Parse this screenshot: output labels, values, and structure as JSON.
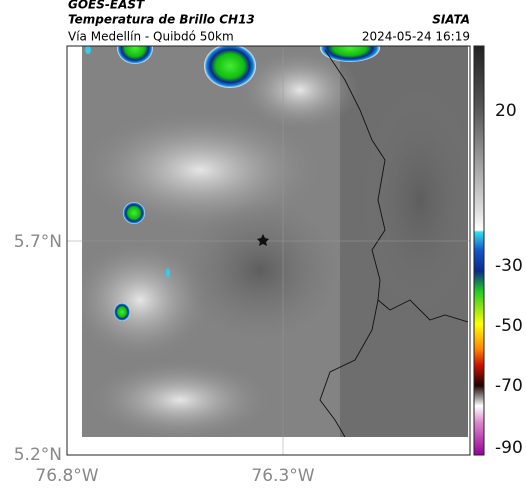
{
  "header": {
    "title": "GOES-EAST",
    "subtitle": "Temperatura de Brillo CH13",
    "route": "Vía Medellín - Quibdó 50km",
    "source": "SIATA",
    "datetime": "2024-05-24 16:19"
  },
  "axes": {
    "lat_labels": [
      "5.7°N",
      "5.2°N"
    ],
    "lon_labels": [
      "76.8°W",
      "76.3°W"
    ]
  },
  "colorbar": {
    "ticks": [
      "20",
      "-30",
      "-50",
      "-70",
      "-90"
    ]
  }
}
